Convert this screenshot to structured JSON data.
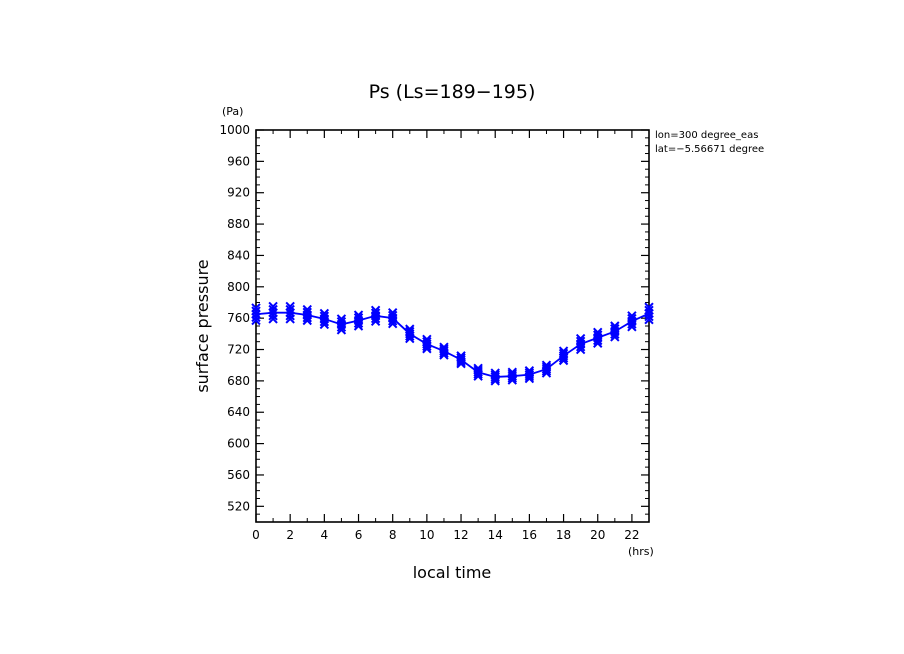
{
  "chart_data": {
    "type": "line",
    "title": "Ps (Ls=189−195)",
    "xlabel": "local time",
    "ylabel": "surface pressure",
    "x_unit": "(hrs)",
    "y_unit": "(Pa)",
    "xlim": [
      0,
      23
    ],
    "ylim": [
      500,
      1000
    ],
    "x_ticks": [
      0,
      2,
      4,
      6,
      8,
      10,
      12,
      14,
      16,
      18,
      20,
      22
    ],
    "y_ticks": [
      520,
      560,
      600,
      640,
      680,
      720,
      760,
      800,
      840,
      880,
      920,
      960,
      1000
    ],
    "annotations": [
      "lon=300 degree_eas",
      "lat=−5.56671 degree"
    ],
    "grid": false,
    "series": [
      {
        "marker": "x",
        "color": "#0000ff",
        "x": [
          0,
          1,
          2,
          3,
          4,
          5,
          6,
          7,
          8,
          9,
          10,
          11,
          12,
          13,
          14,
          15,
          16,
          17,
          18,
          19,
          20,
          21,
          22,
          23
        ],
        "values": [
          765,
          767,
          767,
          764,
          759,
          752,
          757,
          763,
          760,
          740,
          727,
          718,
          707,
          691,
          685,
          686,
          688,
          695,
          712,
          727,
          735,
          743,
          756,
          766
        ],
        "spread": [
          8,
          8,
          8,
          7,
          7,
          7,
          7,
          7,
          7,
          6,
          6,
          5,
          5,
          5,
          5,
          5,
          5,
          5,
          6,
          7,
          7,
          7,
          7,
          8
        ]
      }
    ]
  }
}
